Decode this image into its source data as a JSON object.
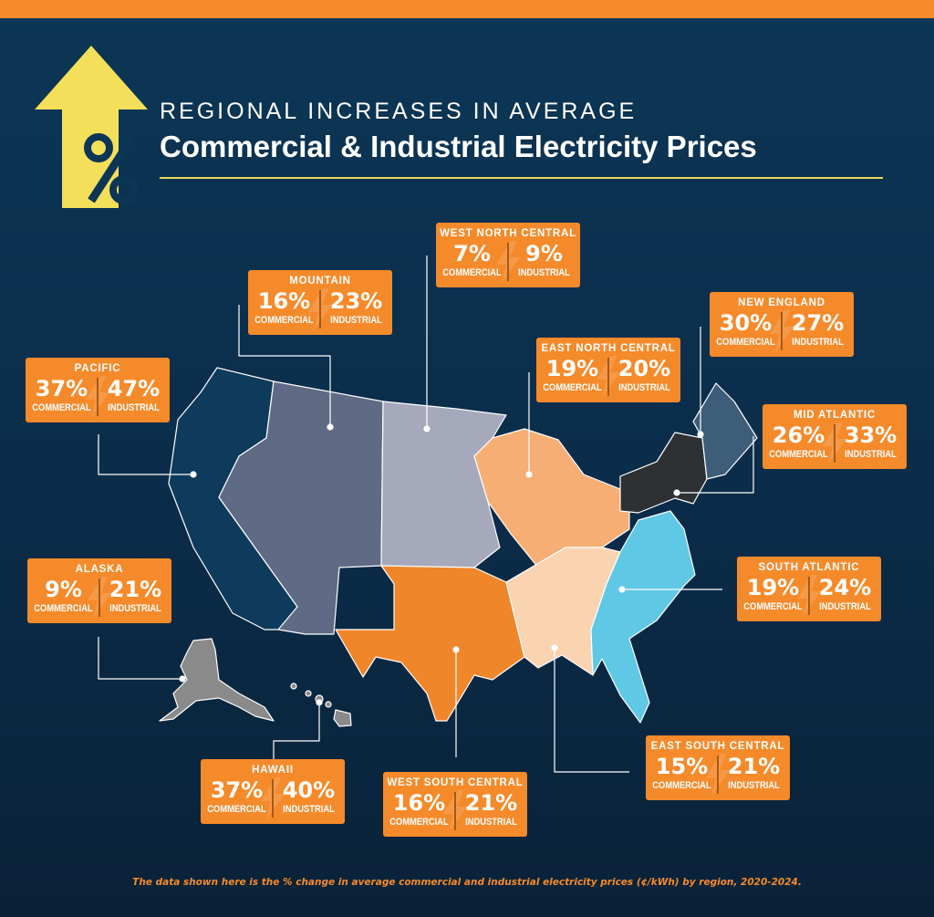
{
  "title": {
    "line1": "REGIONAL INCREASES IN AVERAGE",
    "line2": "Commercial & Industrial Electricity Prices",
    "icon": "up-arrow-percent-icon",
    "icon_color": "#f4df5a"
  },
  "labels": {
    "commercial": "COMMERCIAL",
    "industrial": "INDUSTRIAL"
  },
  "regions": [
    {
      "name": "WEST NORTH CENTRAL",
      "commercial": "7%",
      "industrial": "9%",
      "color": "#a6a9bb"
    },
    {
      "name": "MOUNTAIN",
      "commercial": "16%",
      "industrial": "23%",
      "color": "#5f6b85"
    },
    {
      "name": "NEW ENGLAND",
      "commercial": "30%",
      "industrial": "27%",
      "color": "#3d5d78"
    },
    {
      "name": "EAST NORTH CENTRAL",
      "commercial": "19%",
      "industrial": "20%",
      "color": "#f6ae74"
    },
    {
      "name": "PACIFIC",
      "commercial": "37%",
      "industrial": "47%",
      "color": "#0e3a5c"
    },
    {
      "name": "MID ATLANTIC",
      "commercial": "26%",
      "industrial": "33%",
      "color": "#2d3133"
    },
    {
      "name": "SOUTH ATLANTIC",
      "commercial": "19%",
      "industrial": "24%",
      "color": "#5ec8e5"
    },
    {
      "name": "ALASKA",
      "commercial": "9%",
      "industrial": "21%",
      "color": "#8a8a8a"
    },
    {
      "name": "EAST SOUTH CENTRAL",
      "commercial": "15%",
      "industrial": "21%",
      "color": "#fad3b1"
    },
    {
      "name": "HAWAII",
      "commercial": "37%",
      "industrial": "40%",
      "color": "#8a8a8a"
    },
    {
      "name": "WEST SOUTH CENTRAL",
      "commercial": "16%",
      "industrial": "21%",
      "color": "#f0862a"
    }
  ],
  "colors": {
    "accent": "#f58a2b",
    "background": "#0b2c49"
  },
  "footnote": "The data shown here is the % change in average commercial and industrial electricity prices (¢/kWh) by region, 2020-2024."
}
